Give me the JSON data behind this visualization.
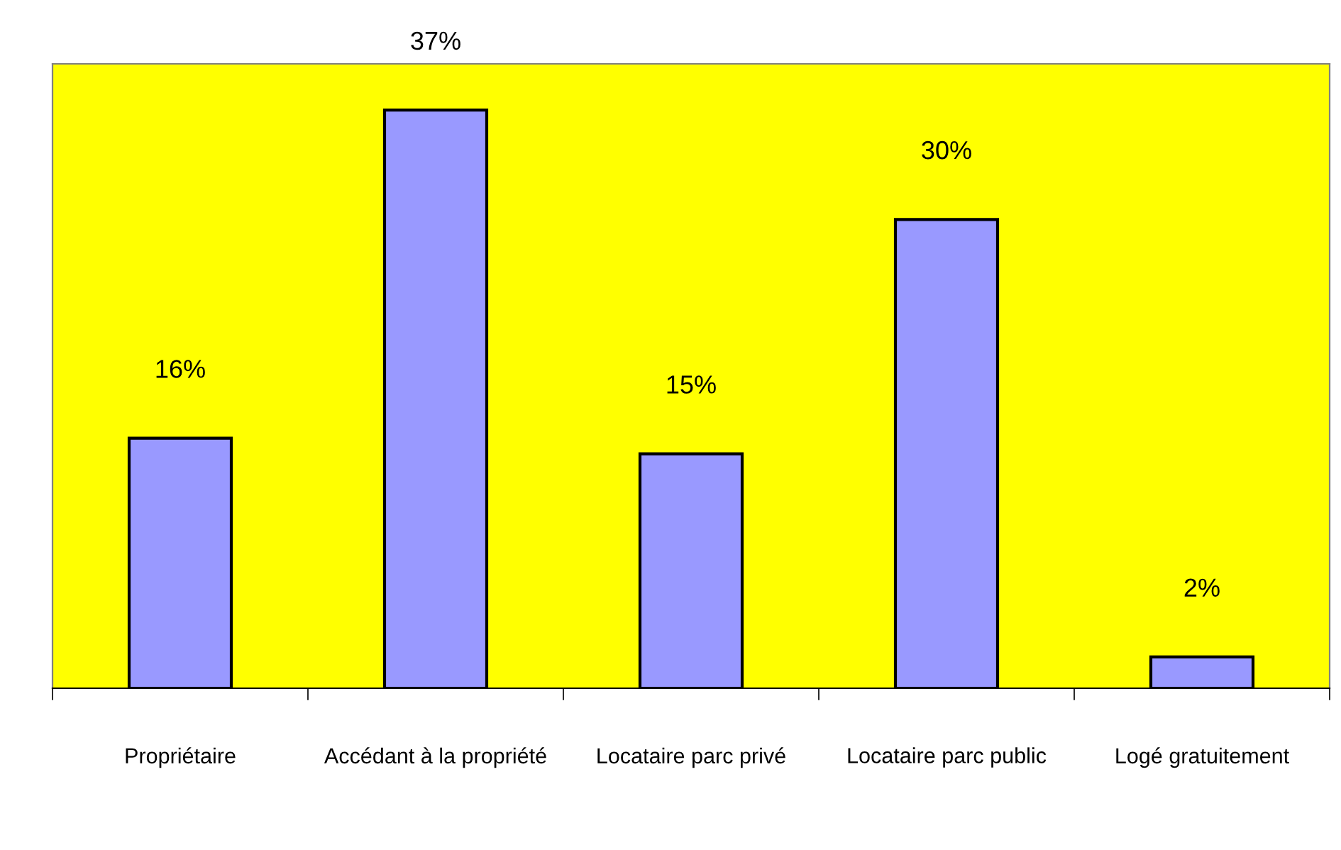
{
  "chart_data": {
    "type": "bar",
    "categories": [
      "Propriétaire",
      "Accédant à la propriété",
      "Locataire parc privé",
      "Locataire parc public",
      "Logé gratuitement"
    ],
    "values": [
      16,
      37,
      15,
      30,
      2
    ],
    "value_labels": [
      "16%",
      "37%",
      "15%",
      "30%",
      "2%"
    ],
    "color": "#9999ff",
    "grid": false,
    "legend": false
  }
}
